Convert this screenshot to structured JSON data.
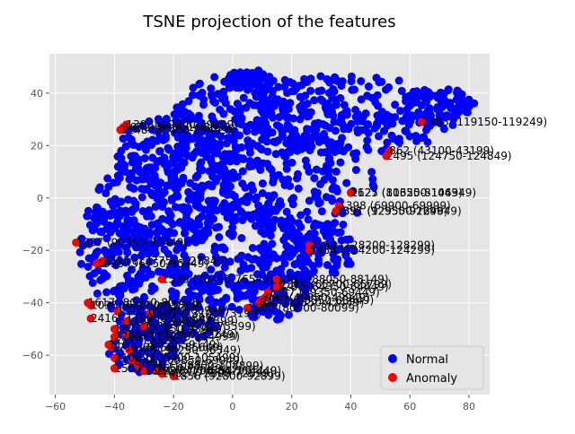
{
  "chart_data": {
    "type": "scatter",
    "title": "TSNE projection of the features",
    "xlabel": "",
    "ylabel": "",
    "xlim": [
      -62,
      87
    ],
    "ylim": [
      -75,
      55
    ],
    "xticks": [
      "−60",
      "−40",
      "−20",
      "0",
      "20",
      "40",
      "60",
      "80"
    ],
    "yticks": [
      "−60",
      "−40",
      "−20",
      "0",
      "20",
      "40"
    ],
    "grid": true,
    "legend_position": "bottom-right",
    "colors": {
      "Normal": "#0000ff",
      "Anomaly": "#ff0000",
      "background": "#e5e5e5",
      "grid": "#ffffff"
    },
    "legend": [
      {
        "label": "Normal",
        "color": "#0000ff"
      },
      {
        "label": "Anomaly",
        "color": "#ff0000"
      }
    ],
    "series": [
      {
        "name": "Normal",
        "clusters": [
          {
            "cx": 40,
            "cy": 32,
            "rx": 40,
            "ry": 15,
            "n": 260
          },
          {
            "cx": 5,
            "cy": 30,
            "rx": 25,
            "ry": 18,
            "n": 200
          },
          {
            "cx": -20,
            "cy": 15,
            "rx": 20,
            "ry": 17,
            "n": 170
          },
          {
            "cx": 20,
            "cy": 5,
            "rx": 28,
            "ry": 20,
            "n": 200
          },
          {
            "cx": -28,
            "cy": -5,
            "rx": 22,
            "ry": 17,
            "n": 180
          },
          {
            "cx": -2,
            "cy": -18,
            "rx": 28,
            "ry": 20,
            "n": 220
          },
          {
            "cx": -40,
            "cy": -22,
            "rx": 12,
            "ry": 18,
            "n": 110
          },
          {
            "cx": -22,
            "cy": -42,
            "rx": 20,
            "ry": 14,
            "n": 160
          },
          {
            "cx": 12,
            "cy": -35,
            "rx": 15,
            "ry": 12,
            "n": 110
          },
          {
            "cx": 30,
            "cy": -20,
            "rx": 12,
            "ry": 10,
            "n": 80
          },
          {
            "cx": -30,
            "cy": -58,
            "rx": 12,
            "ry": 9,
            "n": 80
          },
          {
            "cx": 70,
            "cy": 36,
            "rx": 12,
            "ry": 6,
            "n": 70
          },
          {
            "cx": 6,
            "cy": 45,
            "rx": 8,
            "ry": 4,
            "n": 40
          }
        ]
      },
      {
        "name": "Anomaly",
        "points": [
          {
            "x": 64,
            "y": 29,
            "label": "2383 (119150-119249)"
          },
          {
            "x": 53,
            "y": 18,
            "label": "862 (43100-43199)"
          },
          {
            "x": 52,
            "y": 16,
            "label": "2495 (124750-124849)"
          },
          {
            "x": 40,
            "y": 2,
            "label": "1627 (81350-81449)"
          },
          {
            "x": 40,
            "y": 2,
            "label": "2125 (106250-106349)"
          },
          {
            "x": 36,
            "y": -3,
            "label": "1398 (69900-69999)"
          },
          {
            "x": 35,
            "y": -5,
            "label": "1851 (92550-92649)"
          },
          {
            "x": 35,
            "y": -5,
            "label": "2591 (129550-129649)"
          },
          {
            "x": -53,
            "y": -17,
            "label": "1807 (90350-90449)"
          },
          {
            "x": 26,
            "y": -18,
            "label": "2564 (128200-128299)"
          },
          {
            "x": 26,
            "y": -20,
            "label": "2484 (124200-124299)"
          },
          {
            "x": -44,
            "y": -24,
            "label": "2555 (127750-127849)"
          },
          {
            "x": -46,
            "y": -25,
            "label": "1935 (96750-96849)"
          },
          {
            "x": -24,
            "y": -31,
            "label": "1530 (76450-76549)"
          },
          {
            "x": 15,
            "y": -31,
            "label": "1761 (88050-88149)"
          },
          {
            "x": 16,
            "y": -33,
            "label": "1314 (65700-65799)"
          },
          {
            "x": 15,
            "y": -34,
            "label": "1287 (64350-64449)"
          },
          {
            "x": 12,
            "y": -36,
            "label": "1387 (69350-69449)"
          },
          {
            "x": 11,
            "y": -38,
            "label": "997 (49850-49949)"
          },
          {
            "x": 10,
            "y": -39,
            "label": "1267 (63350-63449)"
          },
          {
            "x": 9,
            "y": -40,
            "label": "847 (42350-42449)"
          },
          {
            "x": -49,
            "y": -40,
            "label": "1617 (80850-80949)"
          },
          {
            "x": -48,
            "y": -41,
            "label": "1036 (51800-51899)"
          },
          {
            "x": 5,
            "y": -42,
            "label": "1600 (80000-80099)"
          },
          {
            "x": -39,
            "y": -43,
            "label": "1218 (60900-60999)"
          },
          {
            "x": -28,
            "y": -44,
            "label": "1462 (73100-73199)"
          },
          {
            "x": -48,
            "y": -46,
            "label": "2416 (120800-120899)"
          },
          {
            "x": -36,
            "y": -47,
            "label": "1166 (58300-58399)"
          },
          {
            "x": -30,
            "y": -49,
            "label": "1510 (75500-75599)"
          },
          {
            "x": -40,
            "y": -50,
            "label": "1877 (93850-93949)"
          },
          {
            "x": -36,
            "y": -52,
            "label": "1243 (62150-62249)"
          },
          {
            "x": -40,
            "y": -53,
            "label": "2298 (114900-114999)"
          },
          {
            "x": -42,
            "y": -56,
            "label": "1181 (59050-59149)"
          },
          {
            "x": -41,
            "y": -57,
            "label": "1711 (85550-85649)"
          },
          {
            "x": -35,
            "y": -58,
            "label": "1925 (96250-96349)"
          },
          {
            "x": -40,
            "y": -61,
            "label": "2108 (105400-105499)"
          },
          {
            "x": -34,
            "y": -62,
            "label": "1397 (69850-69949)"
          },
          {
            "x": -32,
            "y": -64,
            "label": "2176 (108800-108899)"
          },
          {
            "x": -40,
            "y": -65,
            "label": "1553 (77650-77749)"
          },
          {
            "x": -30,
            "y": -66,
            "label": "1694 (84700-84799)"
          },
          {
            "x": -26,
            "y": -66,
            "label": "2287 (114350-114449)"
          },
          {
            "x": -24,
            "y": -67,
            "label": "1452 (72600-72699)"
          },
          {
            "x": -20,
            "y": -68,
            "label": "1856 (92800-92899)"
          },
          {
            "x": -38,
            "y": 26,
            "label": "1148 (57400-57499)"
          },
          {
            "x": -37,
            "y": 27,
            "label": "1972 (98600-98699)"
          },
          {
            "x": -36,
            "y": 28,
            "label": "1396 (69800-69899)"
          }
        ]
      }
    ]
  }
}
